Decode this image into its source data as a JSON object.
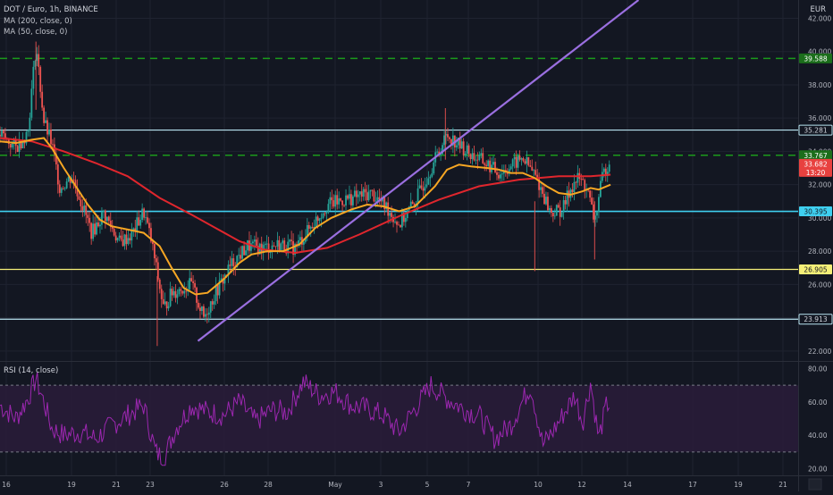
{
  "header": {
    "symbol_line": "DOT / Euro, 1h, BINANCE",
    "ma200_label": "MA (200, close, 0)",
    "ma50_label": "MA (50, close, 0)",
    "rsi_label": "RSI (14, close)",
    "currency": "EUR"
  },
  "colors": {
    "background": "#131722",
    "grid": "#1f2330",
    "up_candle": "#26a69a",
    "down_candle": "#ef5350",
    "ma200": "#e0262d",
    "ma50": "#f6a623",
    "trendline": "#9a6fe0",
    "cyan_level": "#3fd0f0",
    "white_level": "#b8e4f0",
    "yellow_level": "#f5ef78",
    "green_dashed": "#1b9a1b",
    "rsi_line": "#9c27b0",
    "rsi_band": "#2a1c3a"
  },
  "chart_data": [
    {
      "type": "candlestick",
      "title": "DOT / Euro, 1h, BINANCE",
      "x_ticks": [
        "16",
        "19",
        "21",
        "23",
        "26",
        "28",
        "May",
        "3",
        "5",
        "7",
        "10",
        "12",
        "14",
        "17",
        "19",
        "21"
      ],
      "y_ticks": [
        "42.000",
        "40.000",
        "38.000",
        "36.000",
        "34.000",
        "32.000",
        "30.000",
        "28.000",
        "26.000",
        "24.000",
        "22.000"
      ],
      "ylim": [
        21.4,
        43.1
      ],
      "price_path": [
        [
          0,
          35.0
        ],
        [
          0.02,
          34.2
        ],
        [
          0.035,
          35.2
        ],
        [
          0.045,
          40.4
        ],
        [
          0.055,
          35.8
        ],
        [
          0.065,
          34.4
        ],
        [
          0.075,
          31.8
        ],
        [
          0.09,
          32.5
        ],
        [
          0.1,
          31.2
        ],
        [
          0.115,
          29.1
        ],
        [
          0.13,
          30.3
        ],
        [
          0.15,
          28.5
        ],
        [
          0.165,
          29.0
        ],
        [
          0.18,
          30.4
        ],
        [
          0.19,
          28.5
        ],
        [
          0.205,
          24.5
        ],
        [
          0.215,
          25.5
        ],
        [
          0.24,
          26.0
        ],
        [
          0.255,
          24.0
        ],
        [
          0.27,
          25.5
        ],
        [
          0.29,
          27.2
        ],
        [
          0.31,
          28.3
        ],
        [
          0.33,
          28.2
        ],
        [
          0.35,
          28.4
        ],
        [
          0.37,
          28.2
        ],
        [
          0.39,
          29.5
        ],
        [
          0.41,
          30.8
        ],
        [
          0.44,
          31.2
        ],
        [
          0.465,
          31.5
        ],
        [
          0.485,
          30.6
        ],
        [
          0.5,
          29.6
        ],
        [
          0.52,
          31.0
        ],
        [
          0.545,
          33.5
        ],
        [
          0.56,
          35.0
        ],
        [
          0.575,
          34.4
        ],
        [
          0.59,
          33.8
        ],
        [
          0.605,
          33.4
        ],
        [
          0.625,
          32.7
        ],
        [
          0.64,
          33.1
        ],
        [
          0.655,
          33.6
        ],
        [
          0.67,
          32.6
        ],
        [
          0.68,
          31.5
        ],
        [
          0.69,
          30.3
        ],
        [
          0.705,
          30.5
        ],
        [
          0.715,
          31.8
        ],
        [
          0.725,
          32.4
        ],
        [
          0.735,
          31.8
        ],
        [
          0.745,
          29.8
        ],
        [
          0.755,
          32.5
        ],
        [
          0.765,
          33.6
        ]
      ],
      "levels": [
        {
          "value": 39.588,
          "label": "39.588",
          "style": "green-dashed"
        },
        {
          "value": 35.281,
          "label": "35.281",
          "style": "white"
        },
        {
          "value": 33.767,
          "label": "33.767",
          "style": "green-dashed"
        },
        {
          "value": 33.682,
          "label": "33.682",
          "style": "current-price"
        },
        {
          "value": 30.395,
          "label": "30.395",
          "style": "cyan"
        },
        {
          "value": 26.905,
          "label": "26.905",
          "style": "yellow"
        },
        {
          "value": 23.913,
          "label": "23.913",
          "style": "white"
        }
      ],
      "current_price": {
        "value": "33.682",
        "countdown": "13:20"
      },
      "ma50_path": [
        [
          0,
          34.6
        ],
        [
          0.02,
          34.5
        ],
        [
          0.04,
          34.7
        ],
        [
          0.055,
          34.8
        ],
        [
          0.065,
          34.2
        ],
        [
          0.08,
          33.0
        ],
        [
          0.095,
          31.9
        ],
        [
          0.11,
          30.8
        ],
        [
          0.125,
          29.9
        ],
        [
          0.14,
          29.5
        ],
        [
          0.16,
          29.3
        ],
        [
          0.18,
          29.1
        ],
        [
          0.2,
          28.3
        ],
        [
          0.215,
          27.0
        ],
        [
          0.23,
          25.8
        ],
        [
          0.245,
          25.4
        ],
        [
          0.26,
          25.5
        ],
        [
          0.28,
          26.3
        ],
        [
          0.3,
          27.3
        ],
        [
          0.315,
          27.8
        ],
        [
          0.335,
          28.0
        ],
        [
          0.355,
          28.0
        ],
        [
          0.375,
          28.4
        ],
        [
          0.395,
          29.4
        ],
        [
          0.415,
          30.0
        ],
        [
          0.44,
          30.5
        ],
        [
          0.46,
          30.8
        ],
        [
          0.48,
          30.7
        ],
        [
          0.5,
          30.4
        ],
        [
          0.52,
          30.7
        ],
        [
          0.545,
          31.9
        ],
        [
          0.56,
          32.9
        ],
        [
          0.575,
          33.2
        ],
        [
          0.59,
          33.1
        ],
        [
          0.61,
          33.0
        ],
        [
          0.625,
          32.9
        ],
        [
          0.64,
          32.7
        ],
        [
          0.655,
          32.7
        ],
        [
          0.67,
          32.4
        ],
        [
          0.685,
          31.9
        ],
        [
          0.7,
          31.5
        ],
        [
          0.715,
          31.4
        ],
        [
          0.73,
          31.6
        ],
        [
          0.74,
          31.8
        ],
        [
          0.75,
          31.7
        ],
        [
          0.765,
          32.0
        ]
      ],
      "ma200_path": [
        [
          0,
          34.8
        ],
        [
          0.04,
          34.6
        ],
        [
          0.08,
          34.0
        ],
        [
          0.12,
          33.3
        ],
        [
          0.16,
          32.5
        ],
        [
          0.2,
          31.2
        ],
        [
          0.24,
          30.2
        ],
        [
          0.27,
          29.4
        ],
        [
          0.3,
          28.6
        ],
        [
          0.33,
          28.1
        ],
        [
          0.37,
          27.9
        ],
        [
          0.41,
          28.2
        ],
        [
          0.45,
          29.0
        ],
        [
          0.5,
          30.1
        ],
        [
          0.55,
          31.1
        ],
        [
          0.6,
          31.9
        ],
        [
          0.65,
          32.3
        ],
        [
          0.7,
          32.5
        ],
        [
          0.74,
          32.5
        ],
        [
          0.765,
          32.6
        ]
      ],
      "trendline": {
        "from": [
          0.248,
          22.6
        ],
        "to": [
          0.8,
          43.1
        ]
      }
    },
    {
      "type": "line",
      "title": "RSI (14, close)",
      "y_ticks": [
        "80.00",
        "60.00",
        "40.00",
        "20.00"
      ],
      "ylim": [
        16,
        84
      ],
      "band": [
        30,
        70
      ],
      "rsi_path": [
        [
          0,
          58
        ],
        [
          0.02,
          50
        ],
        [
          0.035,
          62
        ],
        [
          0.045,
          74
        ],
        [
          0.055,
          60
        ],
        [
          0.065,
          44
        ],
        [
          0.08,
          40
        ],
        [
          0.1,
          42
        ],
        [
          0.12,
          38
        ],
        [
          0.14,
          46
        ],
        [
          0.16,
          52
        ],
        [
          0.18,
          58
        ],
        [
          0.195,
          30
        ],
        [
          0.205,
          26
        ],
        [
          0.22,
          44
        ],
        [
          0.24,
          58
        ],
        [
          0.26,
          54
        ],
        [
          0.28,
          52
        ],
        [
          0.3,
          60
        ],
        [
          0.32,
          48
        ],
        [
          0.34,
          55
        ],
        [
          0.36,
          54
        ],
        [
          0.38,
          72
        ],
        [
          0.4,
          64
        ],
        [
          0.42,
          66
        ],
        [
          0.44,
          58
        ],
        [
          0.46,
          56
        ],
        [
          0.48,
          52
        ],
        [
          0.5,
          42
        ],
        [
          0.52,
          56
        ],
        [
          0.54,
          70
        ],
        [
          0.56,
          62
        ],
        [
          0.58,
          56
        ],
        [
          0.6,
          52
        ],
        [
          0.62,
          38
        ],
        [
          0.64,
          46
        ],
        [
          0.65,
          56
        ],
        [
          0.665,
          70
        ],
        [
          0.68,
          34
        ],
        [
          0.695,
          44
        ],
        [
          0.71,
          56
        ],
        [
          0.72,
          64
        ],
        [
          0.73,
          48
        ],
        [
          0.74,
          72
        ],
        [
          0.75,
          38
        ],
        [
          0.76,
          58
        ],
        [
          0.765,
          60
        ]
      ]
    }
  ]
}
